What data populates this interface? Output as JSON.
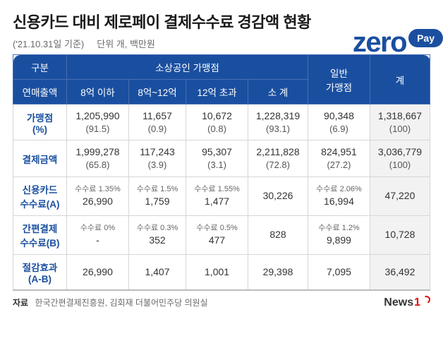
{
  "title": "신용카드 대비 제로페이 결제수수료 경감액 현황",
  "date_note": "('21.10.31일 기준)",
  "unit_note": "단위 개, 백만원",
  "logo": {
    "zero": "zero",
    "pay": "Pay"
  },
  "header": {
    "c1a": "구분",
    "c1b": "연매출액",
    "grp_small": "소상공인 가맹점",
    "c2": "8억 이하",
    "c3": "8억~12억",
    "c4": "12억 초과",
    "c5": "소 계",
    "c6a": "일반",
    "c6b": "가맹점",
    "c7": "계"
  },
  "rows": [
    {
      "head": "가맹점\n(%)",
      "cells": [
        {
          "v": "1,205,990",
          "p": "(91.5)"
        },
        {
          "v": "11,657",
          "p": "(0.9)"
        },
        {
          "v": "10,672",
          "p": "(0.8)"
        },
        {
          "v": "1,228,319",
          "p": "(93.1)"
        },
        {
          "v": "90,348",
          "p": "(6.9)"
        },
        {
          "v": "1,318,667",
          "p": "(100)",
          "total": true
        }
      ]
    },
    {
      "head": "결제금액",
      "cells": [
        {
          "v": "1,999,278",
          "p": "(65.8)"
        },
        {
          "v": "117,243",
          "p": "(3.9)"
        },
        {
          "v": "95,307",
          "p": "(3.1)"
        },
        {
          "v": "2,211,828",
          "p": "(72.8)"
        },
        {
          "v": "824,951",
          "p": "(27.2)"
        },
        {
          "v": "3,036,779",
          "p": "(100)",
          "total": true
        }
      ]
    },
    {
      "head": "신용카드\n수수료(A)",
      "cells": [
        {
          "r": "수수료 1.35%",
          "v": "26,990"
        },
        {
          "r": "수수료 1.5%",
          "v": "1,759"
        },
        {
          "r": "수수료 1.55%",
          "v": "1,477"
        },
        {
          "v": "30,226"
        },
        {
          "r": "수수료 2.06%",
          "v": "16,994"
        },
        {
          "v": "47,220",
          "total": true
        }
      ]
    },
    {
      "head": "간편결제\n수수료(B)",
      "cells": [
        {
          "r": "수수료 0%",
          "v": "-"
        },
        {
          "r": "수수료 0.3%",
          "v": "352"
        },
        {
          "r": "수수료 0.5%",
          "v": "477"
        },
        {
          "v": "828"
        },
        {
          "r": "수수료 1.2%",
          "v": "9,899"
        },
        {
          "v": "10,728",
          "total": true
        }
      ]
    },
    {
      "head": "절감효과\n(A-B)",
      "cells": [
        {
          "v": "26,990"
        },
        {
          "v": "1,407"
        },
        {
          "v": "1,001"
        },
        {
          "v": "29,398"
        },
        {
          "v": "7,095"
        },
        {
          "v": "36,492",
          "total": true
        }
      ]
    }
  ],
  "source_label": "자료",
  "source_text": "한국간편결제진흥원, 김회재 더불어민주당 의원실",
  "news_brand": "News",
  "news_one": "1",
  "style": {
    "brand_color": "#1a4fa0",
    "total_bg": "#f2f2f2"
  }
}
